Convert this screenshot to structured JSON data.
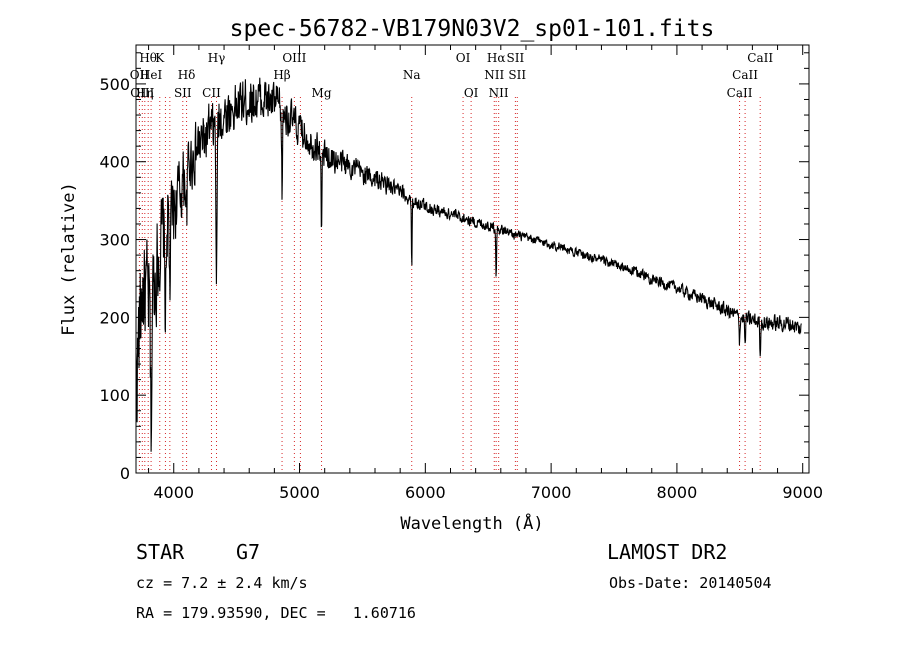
{
  "chart_data": {
    "type": "line",
    "title": "spec-56782-VB179N03V2_sp01-101.fits",
    "xlabel": "Wavelength (Å)",
    "ylabel": "Flux (relative)",
    "xlim": [
      3700,
      9050
    ],
    "ylim": [
      0,
      550
    ],
    "x_ticks": [
      4000,
      5000,
      6000,
      7000,
      8000,
      9000
    ],
    "y_ticks": [
      0,
      100,
      200,
      300,
      400,
      500
    ],
    "grid": false,
    "line_color": "#000000",
    "marker_line_color": "#d62728",
    "continuum": [
      [
        3700,
        120
      ],
      [
        3750,
        240
      ],
      [
        3800,
        220
      ],
      [
        3850,
        250
      ],
      [
        3900,
        300
      ],
      [
        3950,
        330
      ],
      [
        4000,
        340
      ],
      [
        4050,
        360
      ],
      [
        4100,
        390
      ],
      [
        4200,
        420
      ],
      [
        4300,
        440
      ],
      [
        4400,
        460
      ],
      [
        4500,
        470
      ],
      [
        4600,
        480
      ],
      [
        4700,
        480
      ],
      [
        4800,
        475
      ],
      [
        4900,
        460
      ],
      [
        5000,
        440
      ],
      [
        5100,
        425
      ],
      [
        5200,
        410
      ],
      [
        5300,
        400
      ],
      [
        5400,
        395
      ],
      [
        5500,
        385
      ],
      [
        5600,
        378
      ],
      [
        5700,
        370
      ],
      [
        5800,
        360
      ],
      [
        5900,
        350
      ],
      [
        6000,
        343
      ],
      [
        6100,
        337
      ],
      [
        6200,
        333
      ],
      [
        6300,
        328
      ],
      [
        6400,
        322
      ],
      [
        6500,
        318
      ],
      [
        6600,
        313
      ],
      [
        6700,
        307
      ],
      [
        6800,
        302
      ],
      [
        6900,
        298
      ],
      [
        7000,
        293
      ],
      [
        7100,
        290
      ],
      [
        7200,
        283
      ],
      [
        7300,
        278
      ],
      [
        7400,
        273
      ],
      [
        7500,
        268
      ],
      [
        7600,
        262
      ],
      [
        7700,
        257
      ],
      [
        7800,
        250
      ],
      [
        7900,
        243
      ],
      [
        8000,
        238
      ],
      [
        8100,
        230
      ],
      [
        8200,
        224
      ],
      [
        8300,
        216
      ],
      [
        8400,
        208
      ],
      [
        8500,
        200
      ],
      [
        8600,
        196
      ],
      [
        8700,
        193
      ],
      [
        8800,
        192
      ],
      [
        8900,
        192
      ],
      [
        8980,
        185
      ]
    ],
    "noise": [
      [
        3700,
        110
      ],
      [
        3900,
        80
      ],
      [
        4100,
        55
      ],
      [
        4400,
        45
      ],
      [
        4800,
        40
      ],
      [
        5000,
        30
      ],
      [
        5500,
        20
      ],
      [
        6000,
        12
      ],
      [
        6500,
        10
      ],
      [
        7000,
        8
      ],
      [
        7500,
        9
      ],
      [
        8000,
        10
      ],
      [
        8500,
        14
      ],
      [
        9000,
        15
      ]
    ],
    "absorption_features": [
      {
        "x": 3820,
        "depth": 170,
        "width": 8
      },
      {
        "x": 3934,
        "depth": 110,
        "width": 8
      },
      {
        "x": 3969,
        "depth": 90,
        "width": 8
      },
      {
        "x": 4102,
        "depth": 60,
        "width": 7
      },
      {
        "x": 4340,
        "depth": 190,
        "width": 7
      },
      {
        "x": 4861,
        "depth": 100,
        "width": 6
      },
      {
        "x": 5175,
        "depth": 110,
        "width": 5
      },
      {
        "x": 5892,
        "depth": 95,
        "width": 4
      },
      {
        "x": 6563,
        "depth": 60,
        "width": 4
      },
      {
        "x": 8498,
        "depth": 30,
        "width": 4
      },
      {
        "x": 8542,
        "depth": 40,
        "width": 4
      },
      {
        "x": 8662,
        "depth": 50,
        "width": 4
      }
    ],
    "line_markers": [
      {
        "x": 3727,
        "label": "OII",
        "row": 1
      },
      {
        "x": 3750,
        "label": "OIII",
        "row": 2
      },
      {
        "x": 3770,
        "label": "Hη",
        "row": 2
      },
      {
        "x": 3797,
        "label": "Hθ",
        "row": 0
      },
      {
        "x": 3820,
        "label": "HeI",
        "row": 1
      },
      {
        "x": 3889,
        "label": "K",
        "row": 0
      },
      {
        "x": 3934,
        "label": "",
        "row": 0
      },
      {
        "x": 3969,
        "label": "",
        "row": 0
      },
      {
        "x": 4072,
        "label": "SII",
        "row": 2
      },
      {
        "x": 4102,
        "label": "Hδ",
        "row": 1
      },
      {
        "x": 4300,
        "label": "CII",
        "row": 2
      },
      {
        "x": 4340,
        "label": "Hγ",
        "row": 0
      },
      {
        "x": 4861,
        "label": "Hβ",
        "row": 1
      },
      {
        "x": 4959,
        "label": "OIII",
        "row": 0
      },
      {
        "x": 5007,
        "label": "",
        "row": 0
      },
      {
        "x": 5175,
        "label": "Mg",
        "row": 2
      },
      {
        "x": 5892,
        "label": "Na",
        "row": 1
      },
      {
        "x": 6300,
        "label": "OI",
        "row": 0
      },
      {
        "x": 6364,
        "label": "OI",
        "row": 2
      },
      {
        "x": 6548,
        "label": "NII",
        "row": 1
      },
      {
        "x": 6563,
        "label": "Hα",
        "row": 0
      },
      {
        "x": 6583,
        "label": "NII",
        "row": 2
      },
      {
        "x": 6716,
        "label": "SII",
        "row": 0
      },
      {
        "x": 6731,
        "label": "SII",
        "row": 1
      },
      {
        "x": 8498,
        "label": "CaII",
        "row": 2
      },
      {
        "x": 8542,
        "label": "CaII",
        "row": 1
      },
      {
        "x": 8662,
        "label": "CaII",
        "row": 0
      }
    ]
  },
  "info": {
    "object_class": "STAR",
    "subclass": "G7",
    "release": "LAMOST DR2",
    "cz": "cz = 7.2 ± 2.4 km/s",
    "obs_date": "Obs-Date: 20140504",
    "coords": "RA = 179.93590, DEC =   1.60716"
  }
}
